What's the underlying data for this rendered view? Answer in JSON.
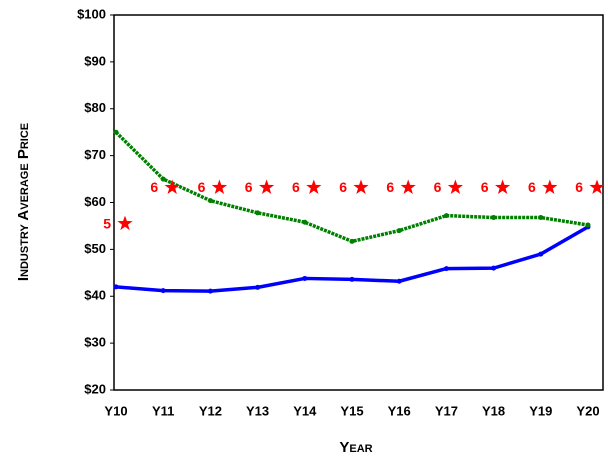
{
  "chart_data": {
    "type": "line",
    "x_label": "Year",
    "y_label": "Industry Average Price",
    "categories": [
      "Y10",
      "Y11",
      "Y12",
      "Y13",
      "Y14",
      "Y15",
      "Y16",
      "Y17",
      "Y18",
      "Y19",
      "Y20"
    ],
    "ylim": [
      20,
      100
    ],
    "yticks": [
      {
        "value": 20,
        "label": "$20"
      },
      {
        "value": 30,
        "label": "$30"
      },
      {
        "value": 40,
        "label": "$40"
      },
      {
        "value": 50,
        "label": "$50"
      },
      {
        "value": 60,
        "label": "$60"
      },
      {
        "value": 70,
        "label": "$70"
      },
      {
        "value": 80,
        "label": "$80"
      },
      {
        "value": 90,
        "label": "$90"
      },
      {
        "value": 100,
        "label": "$100"
      }
    ],
    "series": [
      {
        "color": "#0000ff",
        "style": "solid",
        "values": [
          42,
          41.2,
          41.1,
          41.9,
          43.8,
          43.6,
          43.2,
          45.9,
          46,
          49,
          54.8
        ]
      },
      {
        "color": "#008000",
        "style": "dotted",
        "values": [
          75,
          65,
          60.4,
          57.8,
          55.8,
          51.7,
          54,
          57.2,
          56.8,
          56.8,
          55.2
        ]
      },
      {
        "color": "#ff0000",
        "style": "star",
        "values": [
          55.5,
          63.2,
          63.2,
          63.2,
          63.2,
          63.2,
          63.2,
          63.2,
          63.2,
          63.2,
          63.2
        ],
        "point_labels": [
          "5",
          "6",
          "6",
          "6",
          "6",
          "6",
          "6",
          "6",
          "6",
          "6",
          "6"
        ]
      }
    ]
  }
}
